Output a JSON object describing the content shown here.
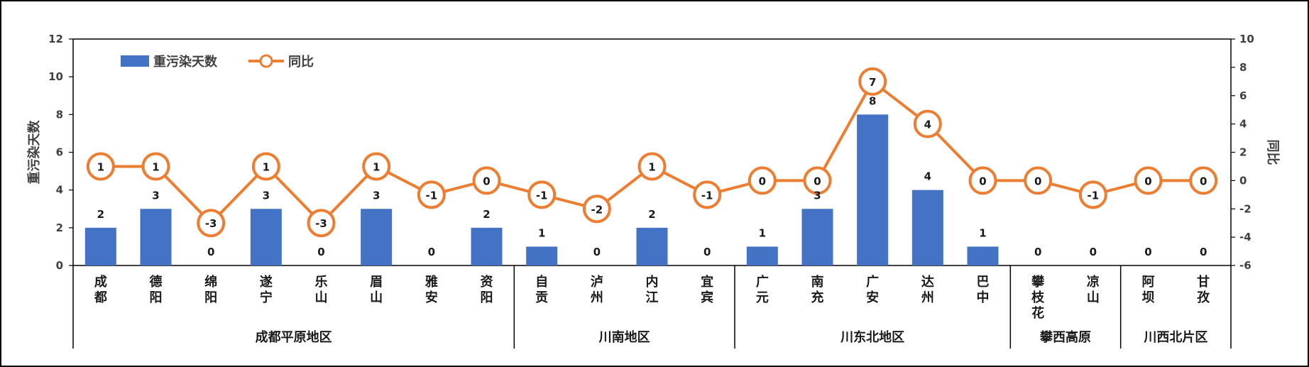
{
  "chart_data": {
    "type": "bar",
    "categories": [
      "成都",
      "德阳",
      "绵阳",
      "遂宁",
      "乐山",
      "眉山",
      "雅安",
      "资阳",
      "自贡",
      "泸州",
      "内江",
      "宜宾",
      "广元",
      "南充",
      "广安",
      "达州",
      "巴中",
      "攀枝花",
      "凉山",
      "阿坝",
      "甘孜"
    ],
    "series": [
      {
        "name": "重污染天数",
        "type": "bar",
        "axis": "left",
        "color": "#4472C4",
        "values": [
          2,
          3,
          0,
          3,
          0,
          3,
          0,
          2,
          1,
          0,
          2,
          0,
          1,
          3,
          8,
          4,
          1,
          0,
          0,
          0,
          0
        ]
      },
      {
        "name": "同比",
        "type": "line",
        "axis": "right",
        "color": "#ED7D31",
        "values": [
          1,
          1,
          -3,
          1,
          -3,
          1,
          -1,
          0,
          -1,
          -2,
          1,
          -1,
          0,
          0,
          7,
          4,
          0,
          0,
          -1,
          0,
          0
        ]
      }
    ],
    "groups": [
      {
        "name": "成都平原地区",
        "count": 8
      },
      {
        "name": "川南地区",
        "count": 4
      },
      {
        "name": "川东北地区",
        "count": 5
      },
      {
        "name": "攀西高原",
        "count": 2
      },
      {
        "name": "川西北片区",
        "count": 2
      }
    ],
    "ylabel": "重污染天数",
    "ylabel_right": "同比",
    "ylim": [
      0,
      12
    ],
    "yticks": [
      0,
      2,
      4,
      6,
      8,
      10,
      12
    ],
    "ylim_right": [
      -6,
      10
    ],
    "yticks_right": [
      -6,
      -4,
      -2,
      0,
      2,
      4,
      6,
      8,
      10
    ],
    "legend": "top-left",
    "grid": false
  }
}
